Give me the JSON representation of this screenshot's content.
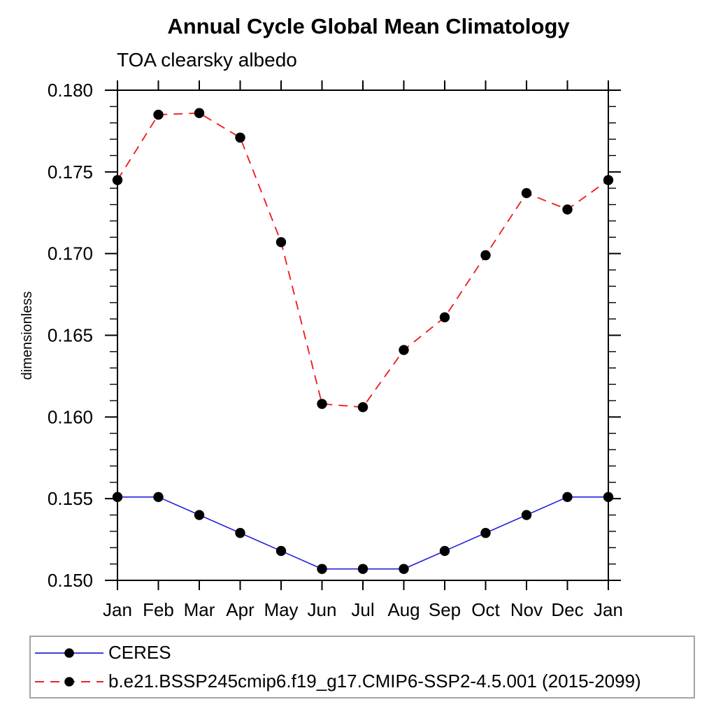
{
  "chart_data": {
    "type": "line",
    "title": "Annual Cycle Global Mean Climatology",
    "subtitle": "TOA clearsky albedo",
    "xlabel": "",
    "ylabel": "dimensionless",
    "categories": [
      "Jan",
      "Feb",
      "Mar",
      "Apr",
      "May",
      "Jun",
      "Jul",
      "Aug",
      "Sep",
      "Oct",
      "Nov",
      "Dec",
      "Jan"
    ],
    "series": [
      {
        "name": "CERES",
        "color": "#2222dd",
        "line_style": "solid",
        "marker": "circle",
        "marker_color": "#000000",
        "values": [
          0.1551,
          0.1551,
          0.154,
          0.1529,
          0.1518,
          0.1507,
          0.1507,
          0.1507,
          0.1518,
          0.1529,
          0.154,
          0.1551,
          0.1551
        ]
      },
      {
        "name": "b.e21.BSSP245cmip6.f19_g17.CMIP6-SSP2-4.5.001 (2015-2099)",
        "color": "#ee2222",
        "line_style": "dashed",
        "marker": "circle",
        "marker_color": "#000000",
        "values": [
          0.1745,
          0.1785,
          0.1786,
          0.1771,
          0.1707,
          0.1608,
          0.1606,
          0.1641,
          0.1661,
          0.1699,
          0.1737,
          0.1727,
          0.1745
        ]
      }
    ],
    "ylim": [
      0.15,
      0.18
    ],
    "ytick_major_step": 0.005,
    "ytick_minor_step": 0.001,
    "ytick_labels": [
      "0.150",
      "0.155",
      "0.160",
      "0.165",
      "0.170",
      "0.175",
      "0.180"
    ],
    "grid": false,
    "axis_color": "#000000",
    "legend_position": "bottom"
  }
}
